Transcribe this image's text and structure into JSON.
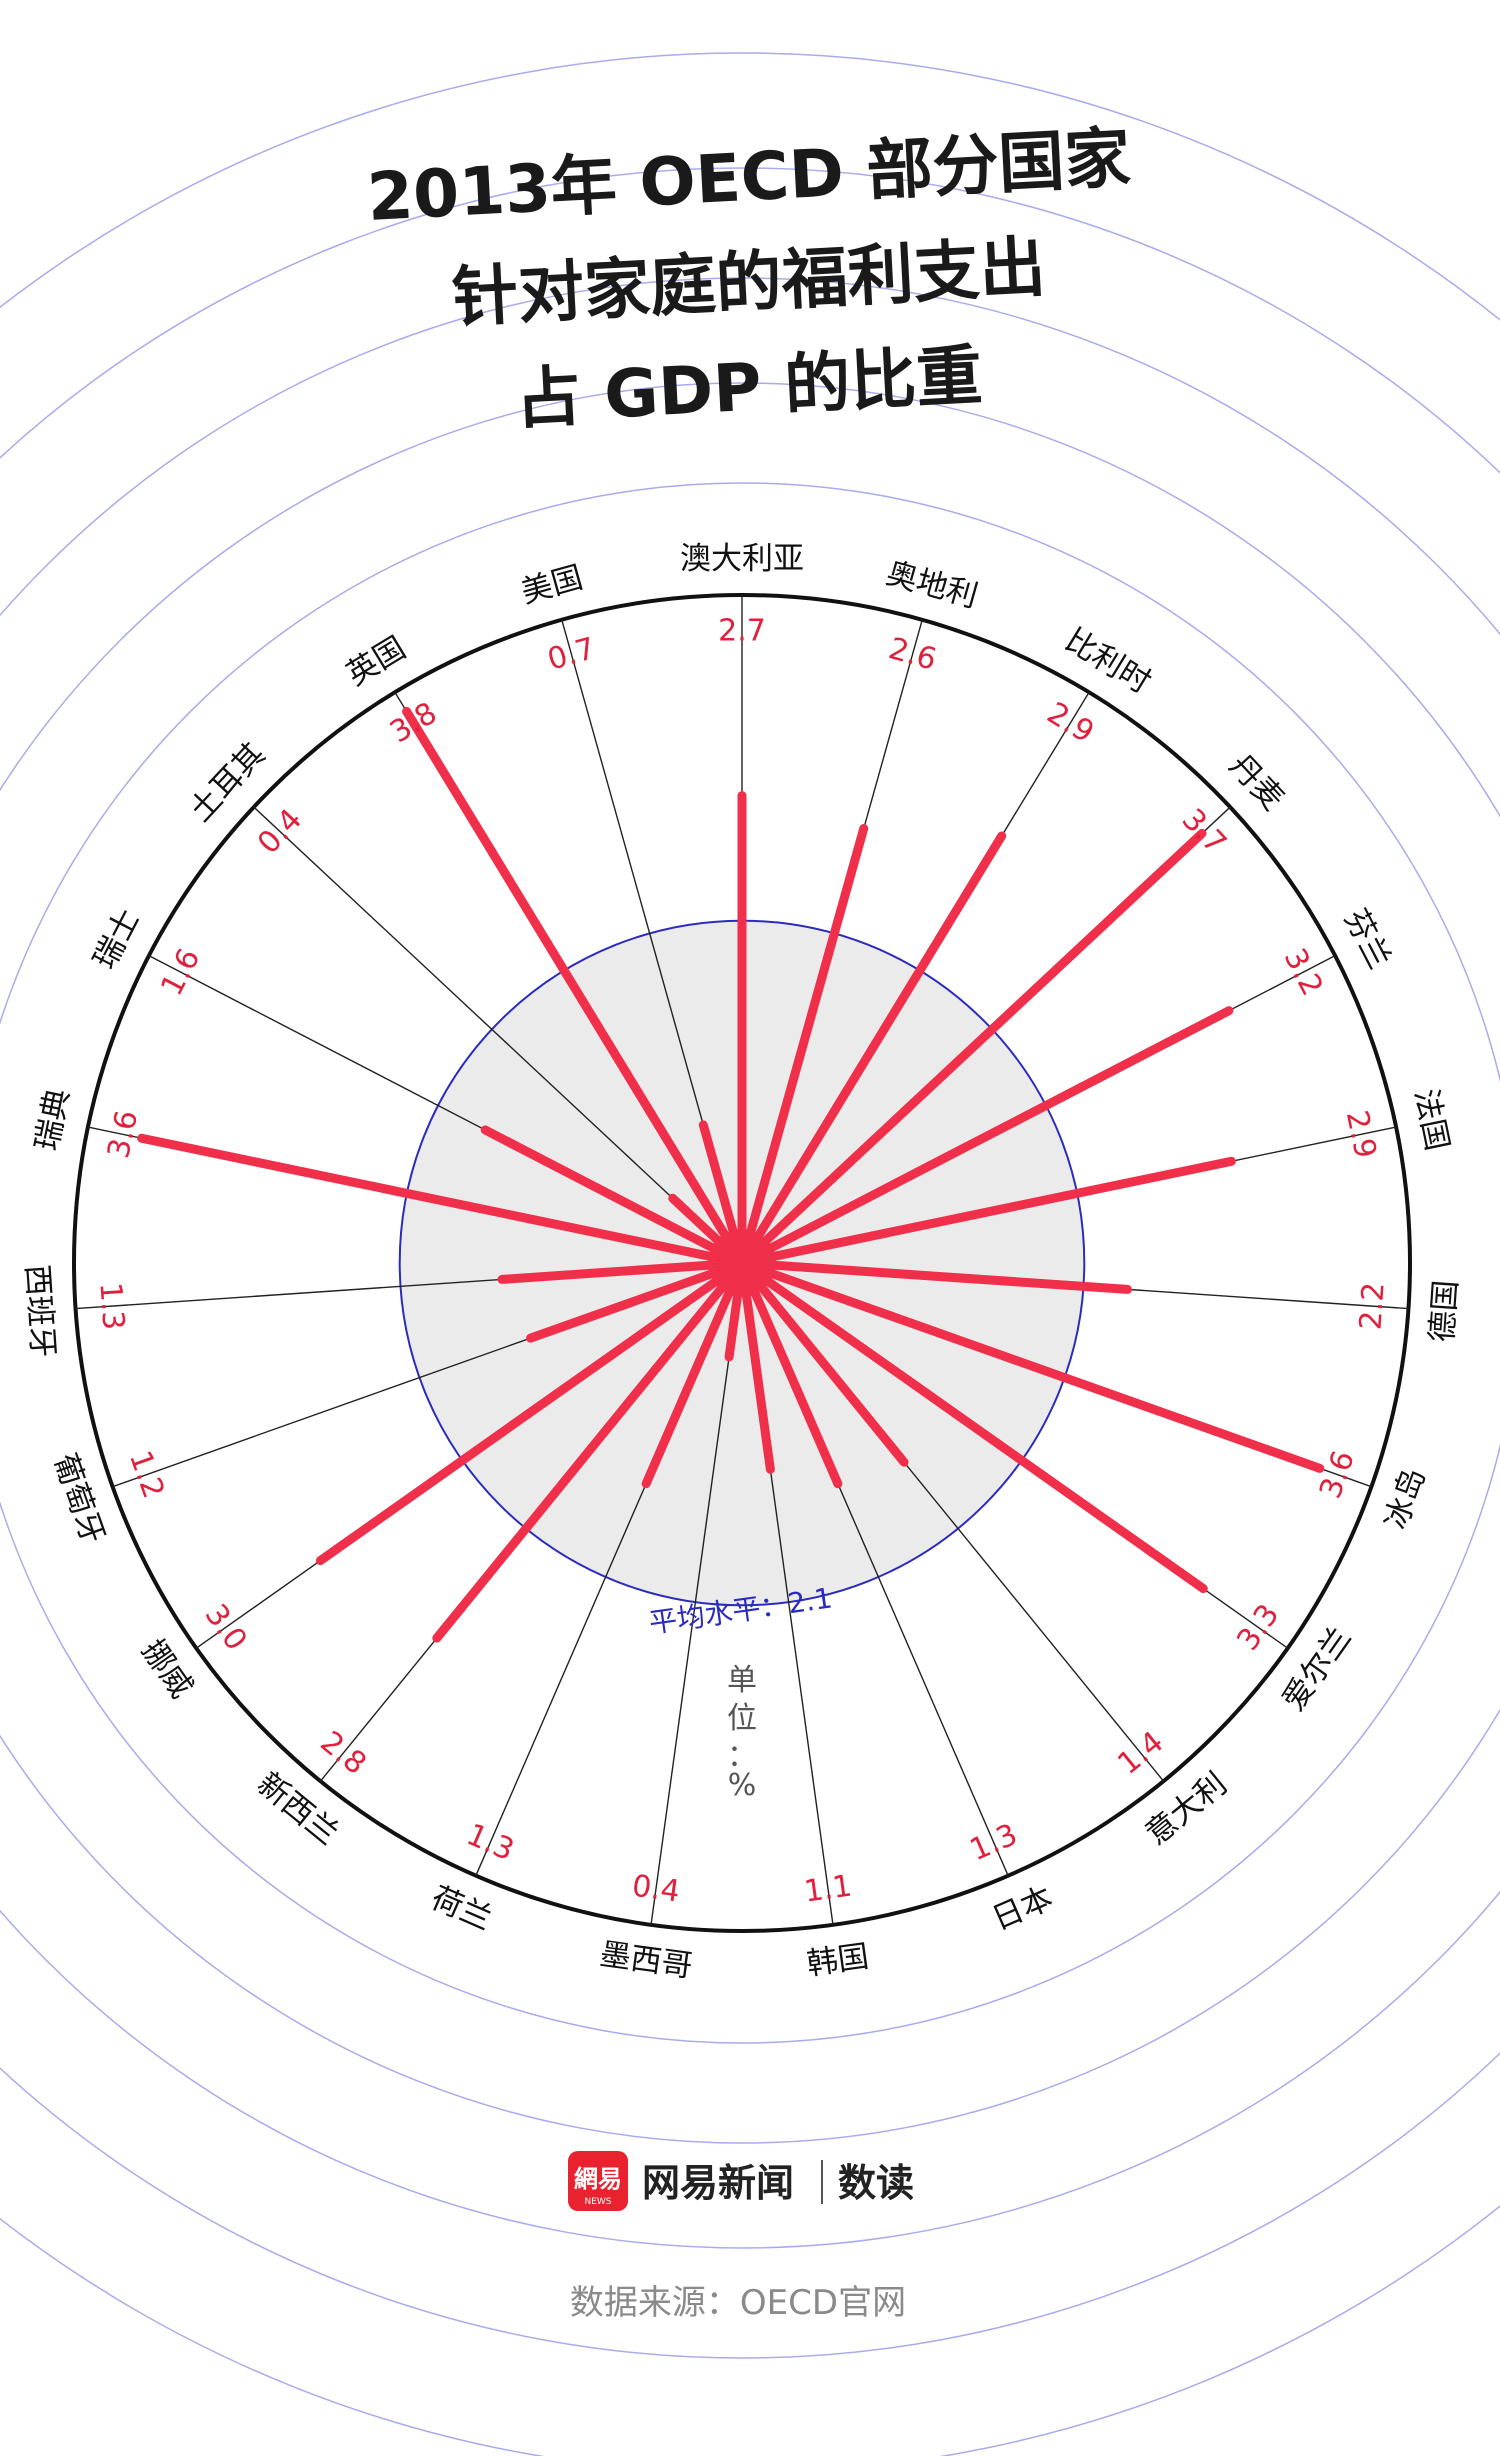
{
  "title_lines": [
    "2013年 OECD 部分国家",
    "针对家庭的福利支出",
    "占 GDP 的比重"
  ],
  "average": {
    "label": "平均水平：2.1",
    "value": 2.1
  },
  "unit": {
    "label": "单位：",
    "symbol": "%"
  },
  "brand": {
    "logo_text": "網易",
    "logo_sub": "NEWS",
    "name": "网易新闻",
    "section": "数读"
  },
  "source": "数据来源：OECD官网",
  "colors": {
    "bar": "#f0304a",
    "value_text": "#e0203c",
    "average_circle": "#2b2bbf",
    "average_fill": "#ebebeb",
    "deco_rings": "#aaaaee",
    "outer_ring": "#111111",
    "logo_bg": "#e8232f"
  },
  "chart_data": {
    "type": "radial-bar",
    "unit": "%",
    "average": 2.1,
    "categories": [
      "澳大利亚",
      "奥地利",
      "比利时",
      "丹麦",
      "芬兰",
      "法国",
      "德国",
      "冰岛",
      "爱尔兰",
      "意大利",
      "日本",
      "韩国",
      "墨西哥",
      "荷兰",
      "新西兰",
      "挪威",
      "葡萄牙",
      "西班牙",
      "瑞典",
      "瑞士",
      "土耳其",
      "英国",
      "美国"
    ],
    "values": [
      2.7,
      2.6,
      2.9,
      3.7,
      3.2,
      2.9,
      2.2,
      3.6,
      3.3,
      1.4,
      1.3,
      1.1,
      0.4,
      1.3,
      2.8,
      3.0,
      1.2,
      1.3,
      3.6,
      1.6,
      0.4,
      3.8,
      0.7
    ],
    "value_labels": [
      "2.7",
      "2.6",
      "2.9",
      "3.7",
      "3.2",
      "2.9",
      "2.2",
      "3.6",
      "3.3",
      "1.4",
      "1.3",
      "1.1",
      "0.4",
      "1.3",
      "2.8",
      "3.0",
      "1.2",
      "1.3",
      "3.6",
      "1.6",
      "0.4",
      "3.8",
      "0.7"
    ]
  }
}
